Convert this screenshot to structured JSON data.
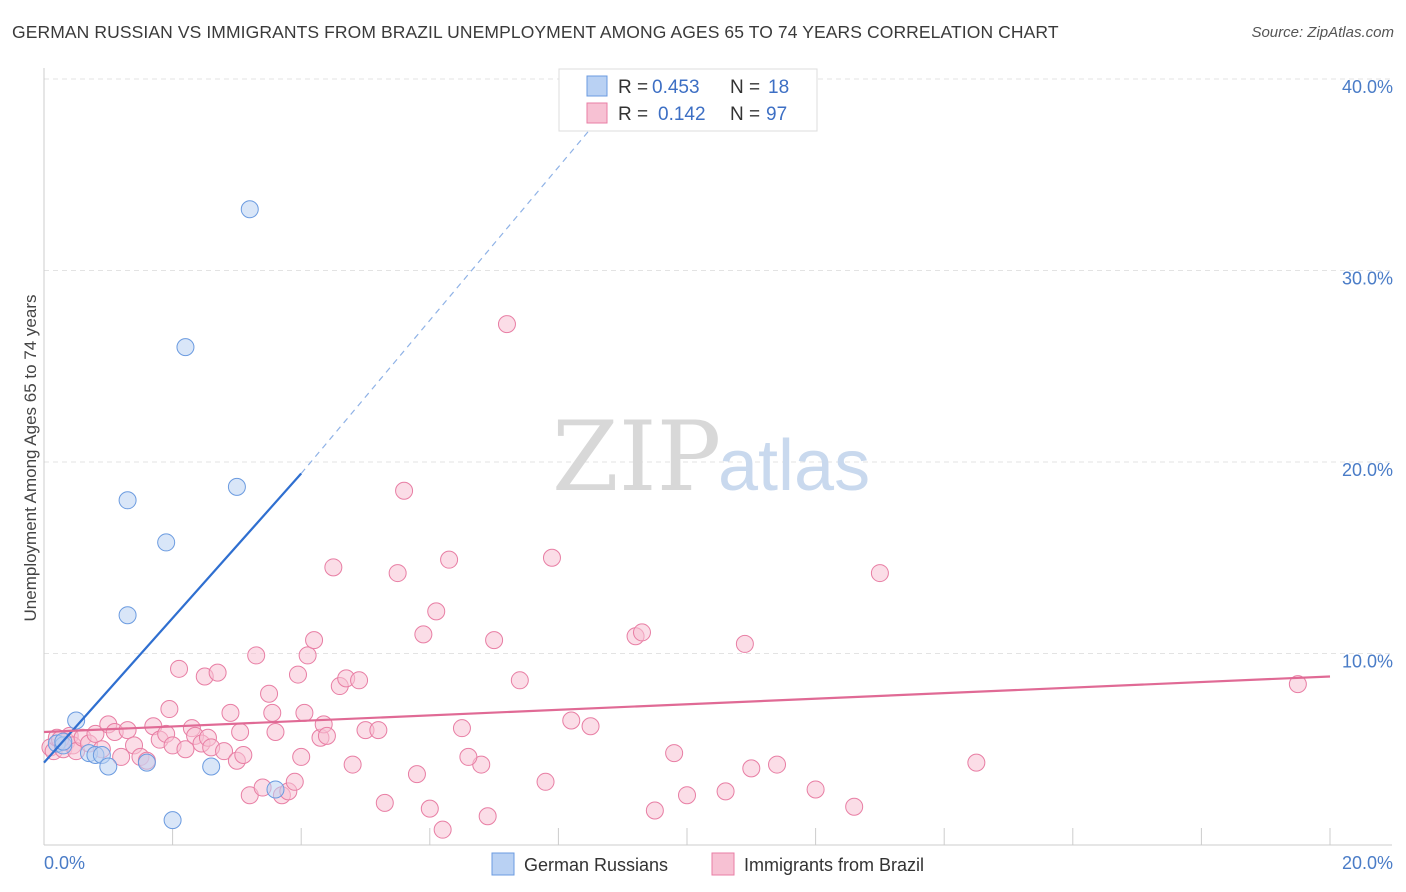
{
  "chart_data": {
    "type": "scatter",
    "title": "GERMAN RUSSIAN VS IMMIGRANTS FROM BRAZIL UNEMPLOYMENT AMONG AGES 65 TO 74 YEARS CORRELATION CHART",
    "source": "Source: ZipAtlas.com",
    "xlabel": "",
    "ylabel": "Unemployment Among Ages 65 to 74 years",
    "xlim": [
      0,
      20
    ],
    "ylim": [
      0,
      40
    ],
    "x_tick_labels": {
      "min": "0.0%",
      "max": "20.0%"
    },
    "y_ticks": [
      {
        "value": 10,
        "label": "10.0%"
      },
      {
        "value": 20,
        "label": "20.0%"
      },
      {
        "value": 30,
        "label": "30.0%"
      },
      {
        "value": 40,
        "label": "40.0%"
      }
    ],
    "watermark": {
      "zip": "ZIP",
      "atlas": "atlas"
    },
    "series": [
      {
        "name": "German Russians",
        "color": "#6b9be0",
        "fill": "#b9d1f3",
        "R": "0.453",
        "N": "18",
        "trend": {
          "x0": 0.0,
          "y0": 4.3,
          "x1": 4.0,
          "y1": 19.4,
          "dash_to_x": 8.6,
          "dash_to_y": 37.8
        },
        "points": [
          [
            0.2,
            5.3
          ],
          [
            0.3,
            5.2
          ],
          [
            0.3,
            5.4
          ],
          [
            0.5,
            6.5
          ],
          [
            0.7,
            4.8
          ],
          [
            0.8,
            4.7
          ],
          [
            0.9,
            4.7
          ],
          [
            1.0,
            4.1
          ],
          [
            1.3,
            12.0
          ],
          [
            1.3,
            18.0
          ],
          [
            1.6,
            4.3
          ],
          [
            1.9,
            15.8
          ],
          [
            2.0,
            1.3
          ],
          [
            2.2,
            26.0
          ],
          [
            2.6,
            4.1
          ],
          [
            3.0,
            18.7
          ],
          [
            3.2,
            33.2
          ],
          [
            3.6,
            2.9
          ]
        ]
      },
      {
        "name": "Immigrants from Brazil",
        "color": "#e87ea4",
        "fill": "#f7c1d3",
        "R": "0.142",
        "N": "97",
        "trend": {
          "x0": 0.0,
          "y0": 5.9,
          "x1": 20.0,
          "y1": 8.8
        },
        "points": [
          [
            0.1,
            5.1
          ],
          [
            0.15,
            4.9
          ],
          [
            0.2,
            5.6
          ],
          [
            0.3,
            5.0
          ],
          [
            0.35,
            5.4
          ],
          [
            0.4,
            5.7
          ],
          [
            0.45,
            5.2
          ],
          [
            0.5,
            4.9
          ],
          [
            0.6,
            5.6
          ],
          [
            0.7,
            5.3
          ],
          [
            0.8,
            5.8
          ],
          [
            0.9,
            5.0
          ],
          [
            1.0,
            6.3
          ],
          [
            1.1,
            5.9
          ],
          [
            1.2,
            4.6
          ],
          [
            1.3,
            6.0
          ],
          [
            1.4,
            5.2
          ],
          [
            1.5,
            4.6
          ],
          [
            1.6,
            4.4
          ],
          [
            1.7,
            6.2
          ],
          [
            1.8,
            5.5
          ],
          [
            1.9,
            5.8
          ],
          [
            1.95,
            7.1
          ],
          [
            2.0,
            5.2
          ],
          [
            2.1,
            9.2
          ],
          [
            2.2,
            5.0
          ],
          [
            2.3,
            6.1
          ],
          [
            2.35,
            5.7
          ],
          [
            2.45,
            5.3
          ],
          [
            2.5,
            8.8
          ],
          [
            2.55,
            5.6
          ],
          [
            2.6,
            5.1
          ],
          [
            2.7,
            9.0
          ],
          [
            2.8,
            4.9
          ],
          [
            2.9,
            6.9
          ],
          [
            3.0,
            4.4
          ],
          [
            3.05,
            5.9
          ],
          [
            3.1,
            4.7
          ],
          [
            3.2,
            2.6
          ],
          [
            3.3,
            9.9
          ],
          [
            3.4,
            3.0
          ],
          [
            3.5,
            7.9
          ],
          [
            3.55,
            6.9
          ],
          [
            3.6,
            5.9
          ],
          [
            3.7,
            2.6
          ],
          [
            3.8,
            2.8
          ],
          [
            3.9,
            3.3
          ],
          [
            3.95,
            8.9
          ],
          [
            4.0,
            4.6
          ],
          [
            4.05,
            6.9
          ],
          [
            4.1,
            9.9
          ],
          [
            4.2,
            10.7
          ],
          [
            4.3,
            5.6
          ],
          [
            4.35,
            6.3
          ],
          [
            4.4,
            5.7
          ],
          [
            4.5,
            14.5
          ],
          [
            4.6,
            8.3
          ],
          [
            4.7,
            8.7
          ],
          [
            4.8,
            4.2
          ],
          [
            4.9,
            8.6
          ],
          [
            5.0,
            6.0
          ],
          [
            5.2,
            6.0
          ],
          [
            5.3,
            2.2
          ],
          [
            5.5,
            14.2
          ],
          [
            5.6,
            18.5
          ],
          [
            5.8,
            3.7
          ],
          [
            5.9,
            11.0
          ],
          [
            6.0,
            1.9
          ],
          [
            6.1,
            12.2
          ],
          [
            6.2,
            0.8
          ],
          [
            6.3,
            14.9
          ],
          [
            6.5,
            6.1
          ],
          [
            6.8,
            4.2
          ],
          [
            6.9,
            1.5
          ],
          [
            7.0,
            10.7
          ],
          [
            7.2,
            27.2
          ],
          [
            7.4,
            8.6
          ],
          [
            7.8,
            3.3
          ],
          [
            7.9,
            15.0
          ],
          [
            8.2,
            6.5
          ],
          [
            8.5,
            6.2
          ],
          [
            9.2,
            10.9
          ],
          [
            9.3,
            11.1
          ],
          [
            9.5,
            1.8
          ],
          [
            9.8,
            4.8
          ],
          [
            10.0,
            2.6
          ],
          [
            10.6,
            2.8
          ],
          [
            10.9,
            10.5
          ],
          [
            11.0,
            4.0
          ],
          [
            11.4,
            4.2
          ],
          [
            12.0,
            2.9
          ],
          [
            12.6,
            2.0
          ],
          [
            13.0,
            14.2
          ],
          [
            14.5,
            4.3
          ],
          [
            19.5,
            8.4
          ],
          [
            6.6,
            4.6
          ],
          [
            0.25,
            5.5
          ]
        ]
      }
    ]
  }
}
